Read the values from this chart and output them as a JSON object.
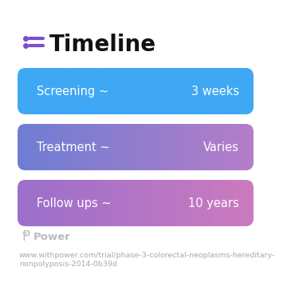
{
  "title": "Timeline",
  "title_fontsize": 20,
  "title_color": "#111111",
  "icon_color": "#7c4dcc",
  "background_color": "#ffffff",
  "rows": [
    {
      "label": "Screening ~",
      "value": "3 weeks",
      "color_left": "#3fa8f5",
      "color_right": "#3fa8f5"
    },
    {
      "label": "Treatment ~",
      "value": "Varies",
      "color_left": "#6e7dd4",
      "color_right": "#b57dc8"
    },
    {
      "label": "Follow ups ~",
      "value": "10 years",
      "color_left": "#9b6fcc",
      "color_right": "#cc7bbf"
    }
  ],
  "power_text": "Power",
  "url_line1": "www.withpower.com/trial/phase-3-colorectal-neoplasms-hereditary-",
  "url_line2": "nonpolyposis-2014-0b39d",
  "row_label_fontsize": 10.5,
  "row_value_fontsize": 10.5,
  "footer_fontsize": 6.8,
  "power_fontsize": 9.5
}
